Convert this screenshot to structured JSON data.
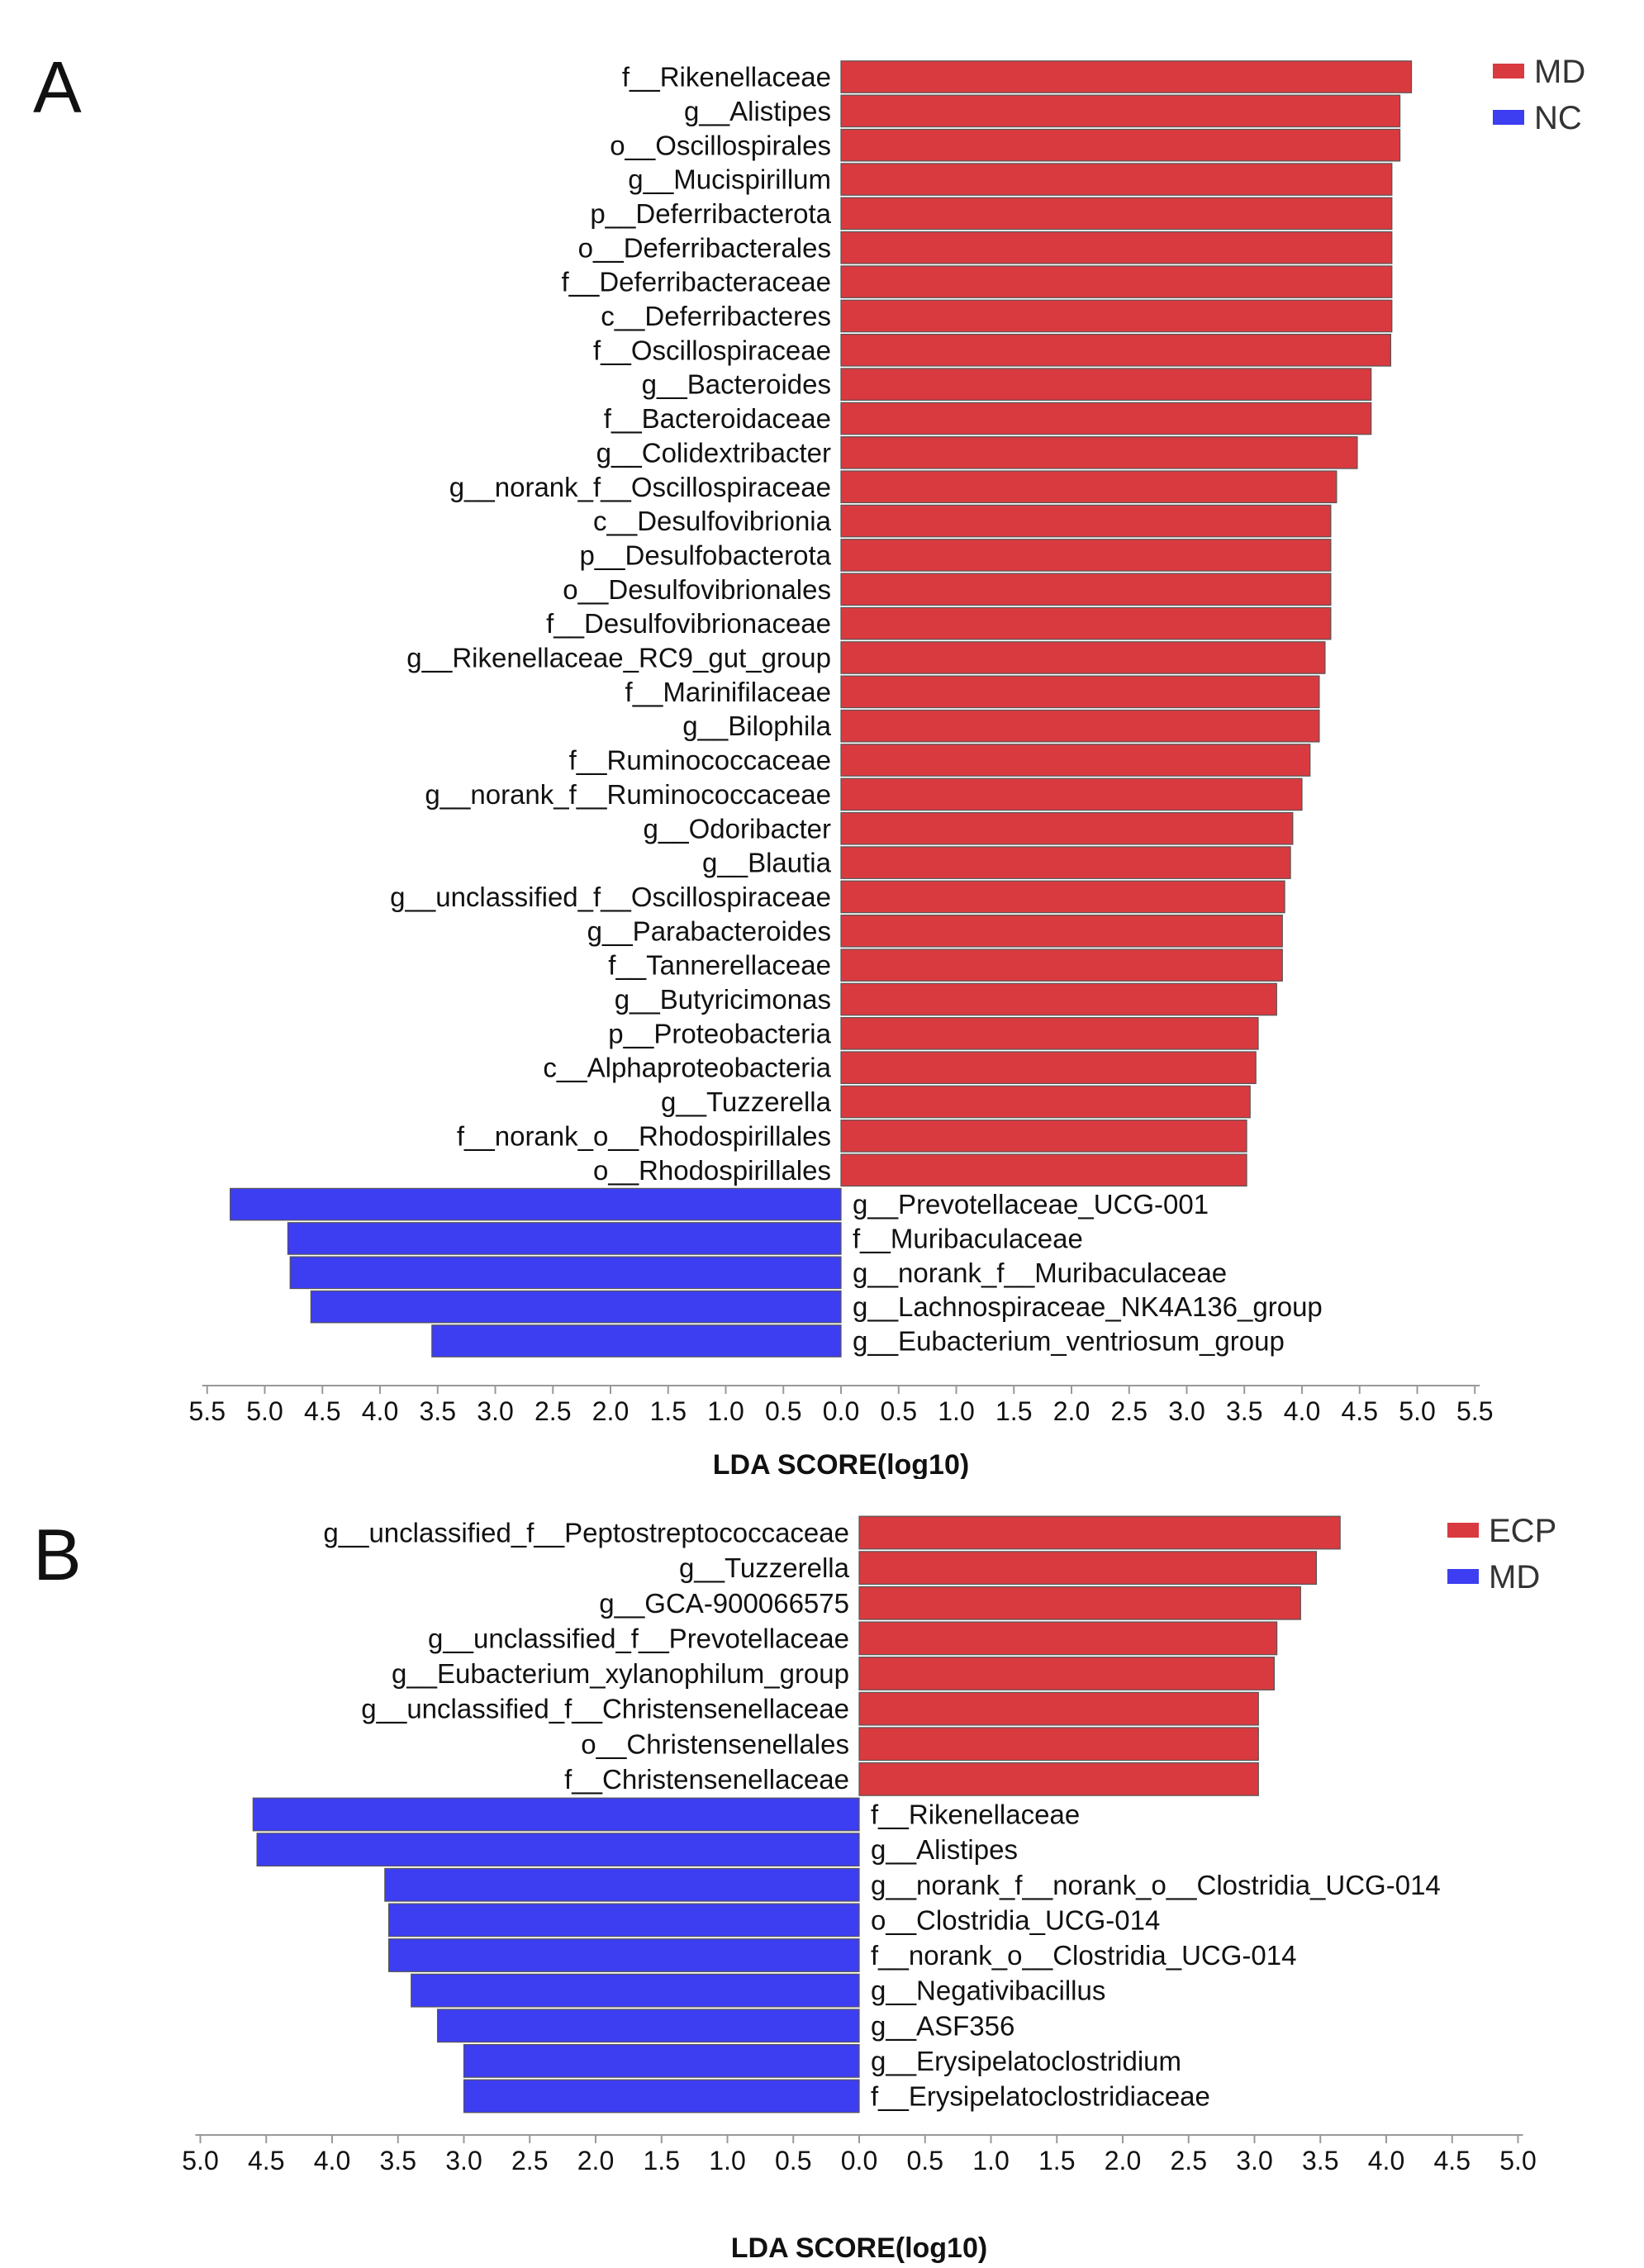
{
  "panel_a_letter": "A",
  "panel_b_letter": "B",
  "chart_data": [
    {
      "type": "bar",
      "orientation": "horizontal-diverging",
      "xlabel": "LDA SCORE(log10)",
      "xticks": [
        "5.5",
        "5.0",
        "4.5",
        "4.0",
        "3.5",
        "3.0",
        "2.5",
        "2.0",
        "1.5",
        "1.0",
        "0.5",
        "0.0",
        "0.5",
        "1.0",
        "1.5",
        "2.0",
        "2.5",
        "3.0",
        "3.5",
        "4.0",
        "4.5",
        "5.0",
        "5.5"
      ],
      "xlim": [
        -5.5,
        5.5
      ],
      "legend": [
        {
          "name": "MD",
          "color": "#d93a3f"
        },
        {
          "name": "NC",
          "color": "#3d3df2"
        }
      ],
      "legend_position": "top-right",
      "categories": [
        "f__Rikenellaceae",
        "g__Alistipes",
        "o__Oscillospirales",
        "g__Mucispirillum",
        "p__Deferribacterota",
        "o__Deferribacterales",
        "f__Deferribacteraceae",
        "c__Deferribacteres",
        "f__Oscillospiraceae",
        "g__Bacteroides",
        "f__Bacteroidaceae",
        "g__Colidextribacter",
        "g__norank_f__Oscillospiraceae",
        "c__Desulfovibrionia",
        "p__Desulfobacterota",
        "o__Desulfovibrionales",
        "f__Desulfovibrionaceae",
        "g__Rikenellaceae_RC9_gut_group",
        "f__Marinifilaceae",
        "g__Bilophila",
        "f__Ruminococcaceae",
        "g__norank_f__Ruminococcaceae",
        "g__Odoribacter",
        "g__Blautia",
        "g__unclassified_f__Oscillospiraceae",
        "g__Parabacteroides",
        "f__Tannerellaceae",
        "g__Butyricimonas",
        "p__Proteobacteria",
        "c__Alphaproteobacteria",
        "g__Tuzzerella",
        "f__norank_o__Rhodospirillales",
        "o__Rhodospirillales",
        "g__Prevotellaceae_UCG-001",
        "f__Muribaculaceae",
        "g__norank_f__Muribaculaceae",
        "g__Lachnospiraceae_NK4A136_group",
        "g__Eubacterium_ventriosum_group"
      ],
      "values": [
        4.95,
        4.85,
        4.85,
        4.78,
        4.78,
        4.78,
        4.78,
        4.78,
        4.77,
        4.6,
        4.6,
        4.48,
        4.3,
        4.25,
        4.25,
        4.25,
        4.25,
        4.2,
        4.15,
        4.15,
        4.07,
        4.0,
        3.92,
        3.9,
        3.85,
        3.83,
        3.83,
        3.78,
        3.62,
        3.6,
        3.55,
        3.52,
        3.52,
        -5.3,
        -4.8,
        -4.78,
        -4.6,
        -3.55
      ],
      "groups": [
        "MD",
        "MD",
        "MD",
        "MD",
        "MD",
        "MD",
        "MD",
        "MD",
        "MD",
        "MD",
        "MD",
        "MD",
        "MD",
        "MD",
        "MD",
        "MD",
        "MD",
        "MD",
        "MD",
        "MD",
        "MD",
        "MD",
        "MD",
        "MD",
        "MD",
        "MD",
        "MD",
        "MD",
        "MD",
        "MD",
        "MD",
        "MD",
        "MD",
        "NC",
        "NC",
        "NC",
        "NC",
        "NC"
      ]
    },
    {
      "type": "bar",
      "orientation": "horizontal-diverging",
      "xlabel": "LDA SCORE(log10)",
      "xticks": [
        "5.0",
        "4.5",
        "4.0",
        "3.5",
        "3.0",
        "2.5",
        "2.0",
        "1.5",
        "1.0",
        "0.5",
        "0.0",
        "0.5",
        "1.0",
        "1.5",
        "2.0",
        "2.5",
        "3.0",
        "3.5",
        "4.0",
        "4.5",
        "5.0"
      ],
      "xlim": [
        -5.0,
        5.0
      ],
      "legend": [
        {
          "name": "ECP",
          "color": "#d93a3f"
        },
        {
          "name": "MD",
          "color": "#3d3df2"
        }
      ],
      "legend_position": "top-right",
      "categories": [
        "g__unclassified_f__Peptostreptococcaceae",
        "g__Tuzzerella",
        "g__GCA-900066575",
        "g__unclassified_f__Prevotellaceae",
        "g__Eubacterium_xylanophilum_group",
        "g__unclassified_f__Christensenellaceae",
        "o__Christensenellales",
        "f__Christensenellaceae",
        "f__Rikenellaceae",
        "g__Alistipes",
        "g__norank_f__norank_o__Clostridia_UCG-014",
        "o__Clostridia_UCG-014",
        "f__norank_o__Clostridia_UCG-014",
        "g__Negativibacillus",
        "g__ASF356",
        "g__Erysipelatoclostridium",
        "f__Erysipelatoclostridiaceae"
      ],
      "values": [
        3.65,
        3.47,
        3.35,
        3.17,
        3.15,
        3.03,
        3.03,
        3.03,
        -4.6,
        -4.57,
        -3.6,
        -3.57,
        -3.57,
        -3.4,
        -3.2,
        -3.0,
        -3.0
      ],
      "groups": [
        "ECP",
        "ECP",
        "ECP",
        "ECP",
        "ECP",
        "ECP",
        "ECP",
        "ECP",
        "MD",
        "MD",
        "MD",
        "MD",
        "MD",
        "MD",
        "MD",
        "MD",
        "MD"
      ]
    }
  ]
}
